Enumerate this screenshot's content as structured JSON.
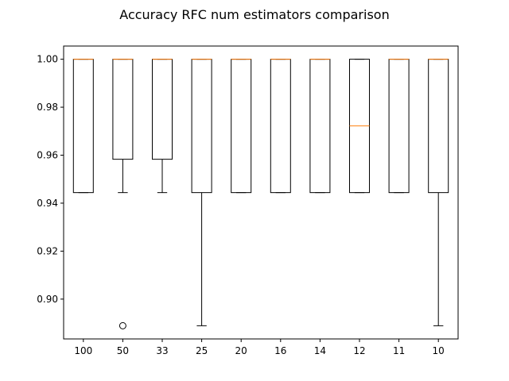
{
  "chart_data": {
    "type": "box",
    "title": "Accuracy RFC num estimators comparison",
    "xlabel": "",
    "ylabel": "",
    "categories": [
      "100",
      "50",
      "33",
      "25",
      "20",
      "16",
      "14",
      "12",
      "11",
      "10"
    ],
    "ylim": [
      0.8834,
      1.0055
    ],
    "yticks": [
      0.9,
      0.92,
      0.94,
      0.96,
      0.98,
      1.0
    ],
    "ytick_labels": [
      "0.90",
      "0.92",
      "0.94",
      "0.96",
      "0.98",
      "1.00"
    ],
    "grid": false,
    "boxes": [
      {
        "whisker_low": 0.9444,
        "q1": 0.9444,
        "median": 1.0,
        "q3": 1.0,
        "whisker_high": 1.0,
        "fliers": []
      },
      {
        "whisker_low": 0.9444,
        "q1": 0.9583,
        "median": 1.0,
        "q3": 1.0,
        "whisker_high": 1.0,
        "fliers": [
          0.8889
        ]
      },
      {
        "whisker_low": 0.9444,
        "q1": 0.9583,
        "median": 1.0,
        "q3": 1.0,
        "whisker_high": 1.0,
        "fliers": []
      },
      {
        "whisker_low": 0.8889,
        "q1": 0.9444,
        "median": 1.0,
        "q3": 1.0,
        "whisker_high": 1.0,
        "fliers": []
      },
      {
        "whisker_low": 0.9444,
        "q1": 0.9444,
        "median": 1.0,
        "q3": 1.0,
        "whisker_high": 1.0,
        "fliers": []
      },
      {
        "whisker_low": 0.9444,
        "q1": 0.9444,
        "median": 1.0,
        "q3": 1.0,
        "whisker_high": 1.0,
        "fliers": []
      },
      {
        "whisker_low": 0.9444,
        "q1": 0.9444,
        "median": 1.0,
        "q3": 1.0,
        "whisker_high": 1.0,
        "fliers": []
      },
      {
        "whisker_low": 0.9444,
        "q1": 0.9444,
        "median": 0.9722,
        "q3": 1.0,
        "whisker_high": 1.0,
        "fliers": []
      },
      {
        "whisker_low": 0.9444,
        "q1": 0.9444,
        "median": 1.0,
        "q3": 1.0,
        "whisker_high": 1.0,
        "fliers": []
      },
      {
        "whisker_low": 0.8889,
        "q1": 0.9444,
        "median": 1.0,
        "q3": 1.0,
        "whisker_high": 1.0,
        "fliers": []
      }
    ],
    "colors": {
      "box": "#000000",
      "median": "#ff7f0e"
    }
  }
}
